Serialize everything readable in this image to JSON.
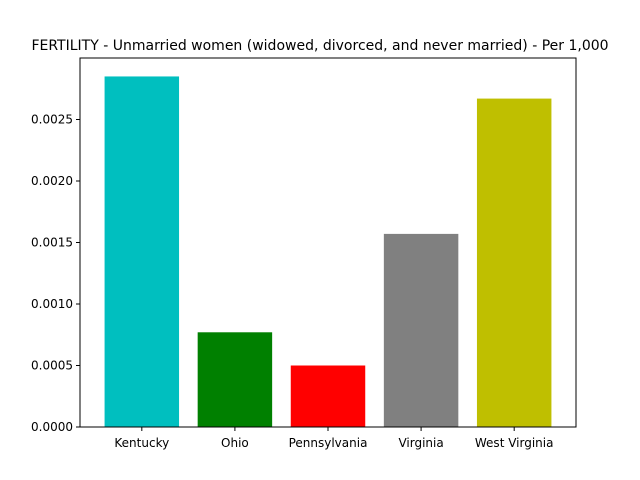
{
  "chart_data": {
    "type": "bar",
    "title": "FERTILITY - Unmarried women (widowed, divorced, and never married) - Per 1,000",
    "xlabel": "",
    "ylabel": "",
    "categories": [
      "Kentucky",
      "Ohio",
      "Pennsylvania",
      "Virginia",
      "West Virginia"
    ],
    "values": [
      0.00285,
      0.00077,
      0.0005,
      0.00157,
      0.00267
    ],
    "colors": [
      "#00bfbf",
      "#008000",
      "#ff0000",
      "#808080",
      "#bfbf00"
    ],
    "ylim": [
      0,
      0.003
    ],
    "yticks": [
      "0.0000",
      "0.0005",
      "0.0010",
      "0.0015",
      "0.0020",
      "0.0025"
    ],
    "grid": false,
    "legend": "none"
  }
}
